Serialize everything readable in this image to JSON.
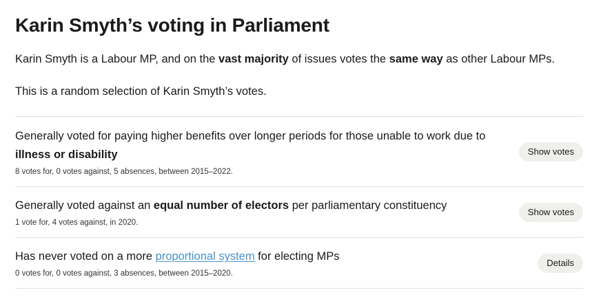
{
  "page_title": "Karin Smyth’s voting in Parliament",
  "intro": {
    "p1_a": "Karin Smyth is a Labour MP, and on the ",
    "p1_b": "vast majority",
    "p1_c": " of issues votes the ",
    "p1_d": "same way",
    "p1_e": " as other Labour MPs.",
    "p2": "This is a random selection of Karin Smyth’s votes."
  },
  "votes": [
    {
      "text_a": "Generally voted for paying higher benefits over longer periods for those unable to work due to ",
      "text_bold": "illness or disability",
      "summary": "8 votes for, 0 votes against, 5 absences, between 2015–2022.",
      "button": "Show votes"
    },
    {
      "text_a": "Generally voted against an ",
      "text_bold": "equal number of electors",
      "text_c": " per parliamentary constituency",
      "summary": "1 vote for, 4 votes against, in 2020.",
      "button": "Show votes"
    },
    {
      "text_a": "Has never voted on a more ",
      "text_link": "proportional system",
      "text_c": " for electing MPs",
      "summary": "0 votes for, 0 votes against, 3 absences, between 2015–2020.",
      "button": "Details"
    }
  ]
}
